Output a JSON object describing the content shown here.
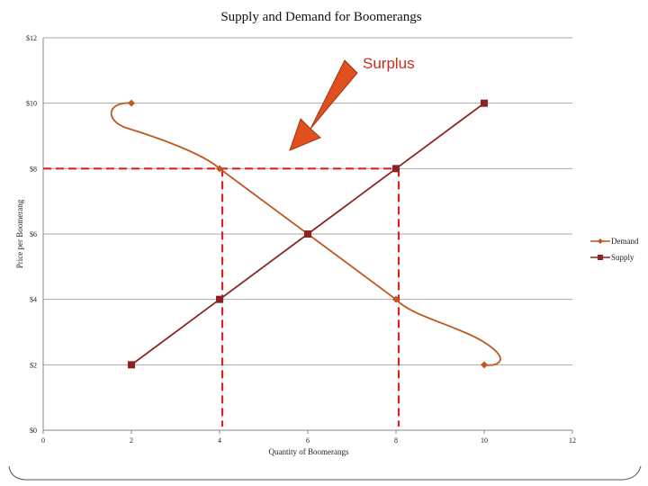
{
  "chart_data": {
    "type": "line",
    "title": "Supply and Demand for Boomerangs",
    "xlabel": "Quantity of Boomerangs",
    "ylabel": "Price per Boomerang",
    "xlim": [
      0,
      12
    ],
    "ylim": [
      0,
      12
    ],
    "x_ticks": [
      "0",
      "2",
      "4",
      "6",
      "8",
      "10",
      "12"
    ],
    "y_ticks": [
      "$0",
      "$2",
      "$4",
      "$6",
      "$8",
      "$10",
      "$12"
    ],
    "grid": true,
    "legend_position": "right",
    "series": [
      {
        "name": "Demand",
        "color": "#c0571f",
        "marker": "diamond",
        "x": [
          2,
          4,
          6,
          8,
          10
        ],
        "y": [
          10,
          8,
          6,
          4,
          2
        ]
      },
      {
        "name": "Supply",
        "color": "#8b2323",
        "marker": "square",
        "x": [
          2,
          4,
          6,
          8,
          10
        ],
        "y": [
          2,
          4,
          6,
          8,
          10
        ]
      }
    ],
    "reference_lines": {
      "color": "#dd2222",
      "price_level": 8,
      "quantities": [
        4,
        8
      ]
    },
    "annotation": {
      "text": "Surplus",
      "color": "#cc2a1a",
      "arrow_color": "#e0501e"
    }
  }
}
